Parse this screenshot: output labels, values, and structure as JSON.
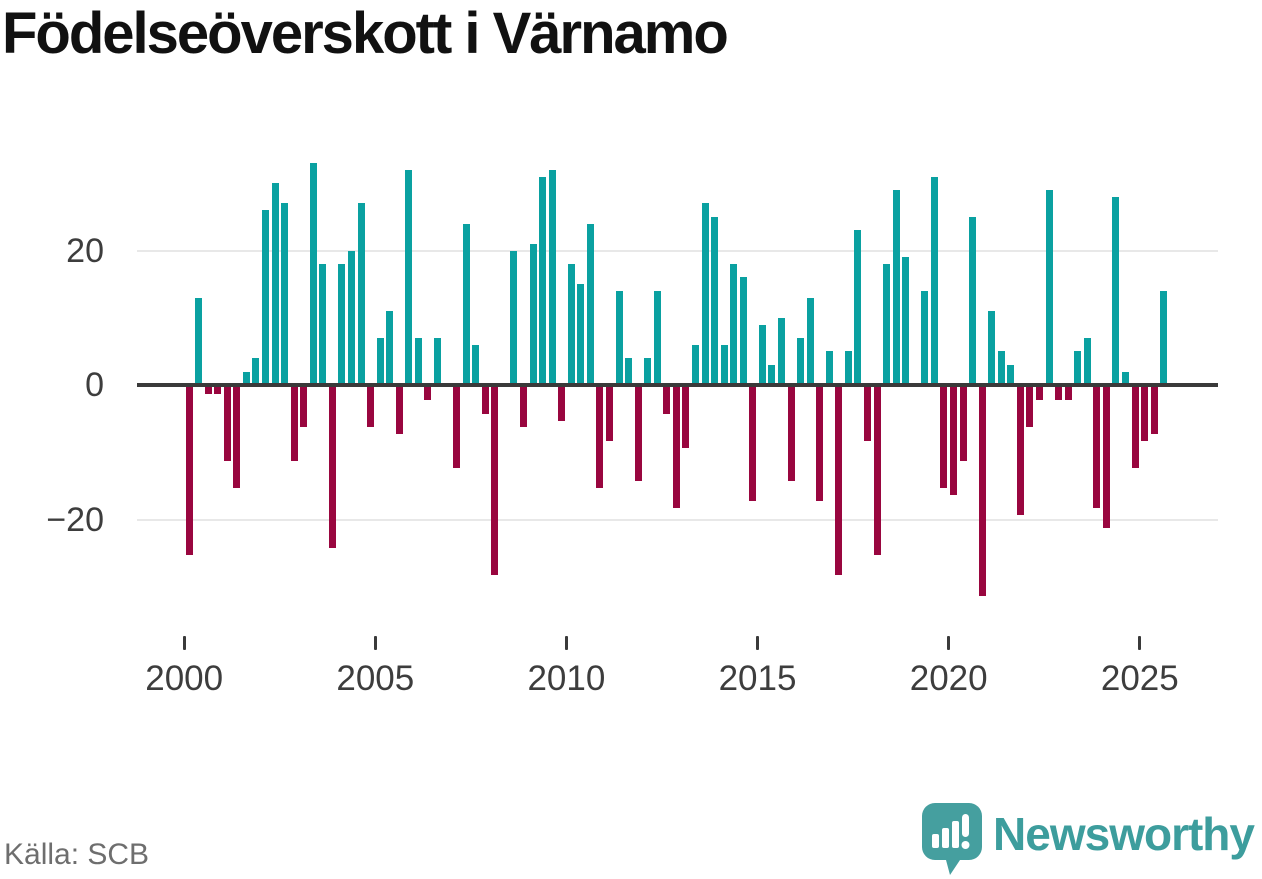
{
  "header": {
    "title": "Födelseöverskott i Värnamo"
  },
  "footer": {
    "source": "Källa: SCB",
    "brand": "Newsworthy"
  },
  "colors": {
    "positive_bar": "#0aa1a1",
    "negative_bar": "#99063f",
    "zero_axis": "#3a3a3a",
    "gridline": "#e8e8e8",
    "axis_text": "#3d3d3d",
    "source_text": "#6e6e6e",
    "brand_teal": "#3d9d9d"
  },
  "chart_data": {
    "type": "bar",
    "title": "Födelseöverskott i Värnamo",
    "frequency": "quarterly",
    "start": "2000 Q1",
    "end": "2025 Q3",
    "grid": "horizontal",
    "legend": "none",
    "ylim": [
      -33,
      35
    ],
    "yticks": [
      {
        "value": 20,
        "label": "20"
      },
      {
        "value": 0,
        "label": "0"
      },
      {
        "value": -20,
        "label": "−20"
      }
    ],
    "xticks": [
      {
        "year": 2000,
        "label": "2000"
      },
      {
        "year": 2005,
        "label": "2005"
      },
      {
        "year": 2010,
        "label": "2010"
      },
      {
        "year": 2015,
        "label": "2015"
      },
      {
        "year": 2020,
        "label": "2020"
      },
      {
        "year": 2025,
        "label": "2025"
      }
    ],
    "values": [
      -25,
      13,
      -1,
      -1,
      -11,
      -15,
      2,
      4,
      26,
      30,
      27,
      -11,
      -6,
      33,
      18,
      -24,
      18,
      20,
      27,
      -6,
      7,
      11,
      -7,
      32,
      7,
      -2,
      7,
      0,
      -12,
      24,
      6,
      -4,
      -28,
      0,
      20,
      -6,
      21,
      31,
      32,
      -5,
      18,
      15,
      24,
      -15,
      -8,
      14,
      4,
      -14,
      4,
      14,
      -4,
      -18,
      -9,
      6,
      27,
      25,
      6,
      18,
      16,
      -17,
      9,
      3,
      10,
      -14,
      7,
      13,
      -17,
      5,
      -28,
      5,
      23,
      -8,
      -25,
      18,
      29,
      19,
      0,
      14,
      31,
      -15,
      -16,
      -11,
      25,
      -31,
      11,
      5,
      3,
      -19,
      -6,
      -2,
      29,
      -2,
      -2,
      5,
      7,
      -18,
      -21,
      28,
      2,
      -12,
      -8,
      -7,
      14
    ]
  }
}
